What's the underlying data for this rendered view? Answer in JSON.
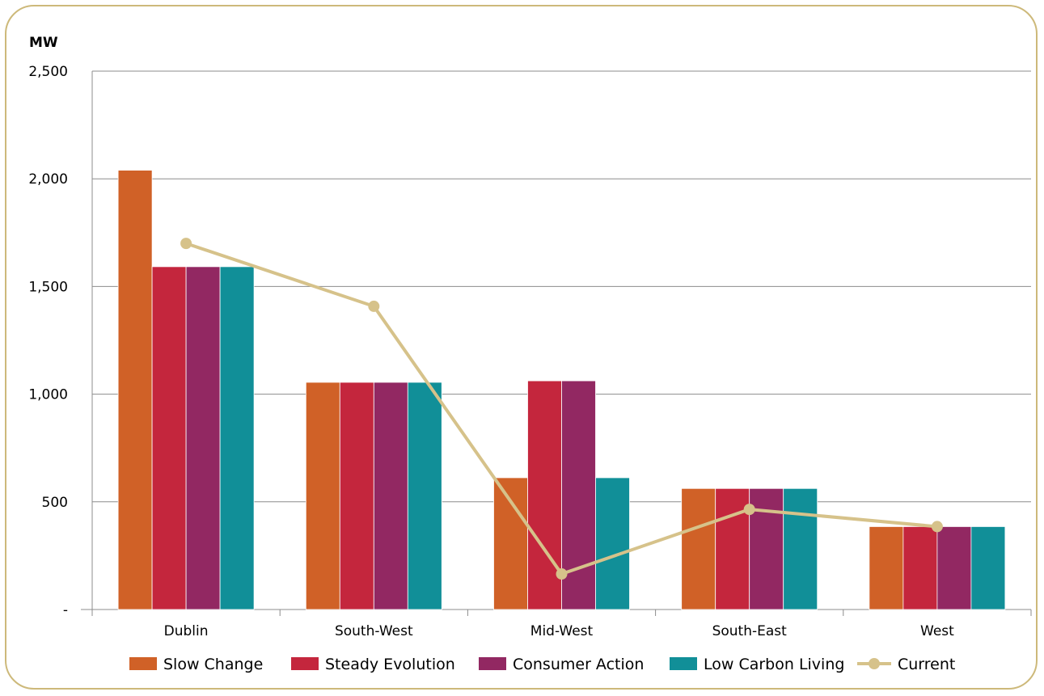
{
  "chart_data": {
    "type": "bar",
    "unit_label": "MW",
    "categories": [
      "Dublin",
      "South-West",
      "Mid-West",
      "South-East",
      "West"
    ],
    "ylim": [
      0,
      2500
    ],
    "yticks": [
      {
        "value": 0,
        "label": "-"
      },
      {
        "value": 500,
        "label": "500"
      },
      {
        "value": 1000,
        "label": "1,000"
      },
      {
        "value": 1500,
        "label": "1,500"
      },
      {
        "value": 2000,
        "label": "2,000"
      },
      {
        "value": 2500,
        "label": "2,500"
      }
    ],
    "grid": true,
    "legend_position": "bottom",
    "series": [
      {
        "name": "Slow Change",
        "type": "bar",
        "color": "#d06127",
        "values": [
          2040,
          1055,
          612,
          562,
          385
        ]
      },
      {
        "name": "Steady Evolution",
        "type": "bar",
        "color": "#c4263d",
        "values": [
          1592,
          1055,
          1062,
          562,
          385
        ]
      },
      {
        "name": "Consumer Action",
        "type": "bar",
        "color": "#922862",
        "values": [
          1592,
          1055,
          1062,
          562,
          385
        ]
      },
      {
        "name": "Low Carbon Living",
        "type": "bar",
        "color": "#118f98",
        "values": [
          1592,
          1055,
          612,
          562,
          385
        ]
      },
      {
        "name": "Current",
        "type": "line",
        "color": "#d6c28a",
        "values": [
          1700,
          1408,
          165,
          465,
          385
        ]
      }
    ]
  }
}
